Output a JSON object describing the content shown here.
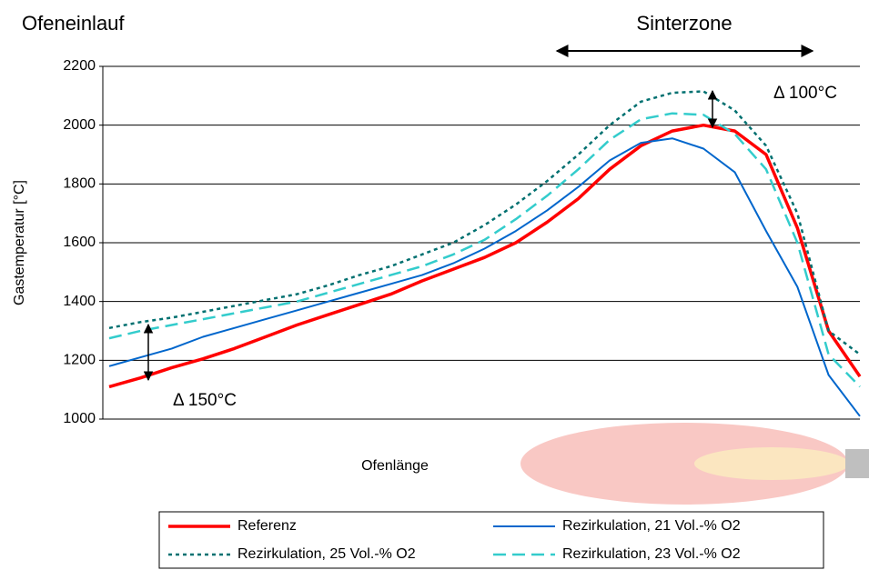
{
  "chart_data": {
    "type": "line",
    "ylabel": "Gastemperatur [°C]",
    "xlabel": "Ofenlänge",
    "annotations": [
      "Ofeneinlauf",
      "Sinterzone",
      "Δ 100°C",
      "Δ 150°C"
    ],
    "categories": [
      null,
      null,
      null,
      null,
      null,
      null,
      null,
      null,
      null,
      null,
      null,
      null,
      null,
      null,
      null,
      null,
      null,
      null,
      null,
      null,
      null,
      null,
      null,
      null,
      null
    ],
    "ylim": [
      1000,
      2200
    ],
    "yticks": [
      1000,
      1200,
      1400,
      1600,
      1800,
      2000,
      2200
    ],
    "grid": true,
    "legend": "bottom",
    "series": [
      {
        "name": "Referenz",
        "color": "#ff0000",
        "dash": "solid",
        "width": 3.5,
        "values": [
          1110,
          1140,
          1175,
          1205,
          1240,
          1280,
          1320,
          1355,
          1390,
          1425,
          1470,
          1510,
          1550,
          1600,
          1670,
          1750,
          1850,
          1930,
          1980,
          2000,
          1980,
          1900,
          1650,
          1300,
          1145
        ]
      },
      {
        "name": "Rezirkulation, 21 Vol.-% O2",
        "color": "#0066cc",
        "dash": "solid",
        "width": 2,
        "values": [
          1180,
          1210,
          1240,
          1280,
          1310,
          1340,
          1370,
          1400,
          1430,
          1460,
          1490,
          1530,
          1580,
          1640,
          1710,
          1790,
          1880,
          1940,
          1955,
          1920,
          1840,
          1640,
          1450,
          1150,
          1010
        ]
      },
      {
        "name": "Rezirkulation, 25 Vol.-% O2",
        "color": "#007070",
        "dash": "dotted",
        "width": 2.5,
        "values": [
          1310,
          1330,
          1345,
          1365,
          1385,
          1405,
          1425,
          1455,
          1490,
          1520,
          1560,
          1600,
          1660,
          1730,
          1810,
          1900,
          2000,
          2080,
          2110,
          2115,
          2050,
          1930,
          1700,
          1300,
          1220
        ]
      },
      {
        "name": "Rezirkulation, 23 Vol.-% O2",
        "color": "#33cccc",
        "dash": "dashed",
        "width": 2.5,
        "values": [
          1275,
          1300,
          1320,
          1340,
          1360,
          1380,
          1400,
          1430,
          1460,
          1490,
          1520,
          1560,
          1610,
          1680,
          1760,
          1850,
          1950,
          2020,
          2040,
          2035,
          1970,
          1850,
          1600,
          1220,
          1110
        ]
      }
    ]
  }
}
